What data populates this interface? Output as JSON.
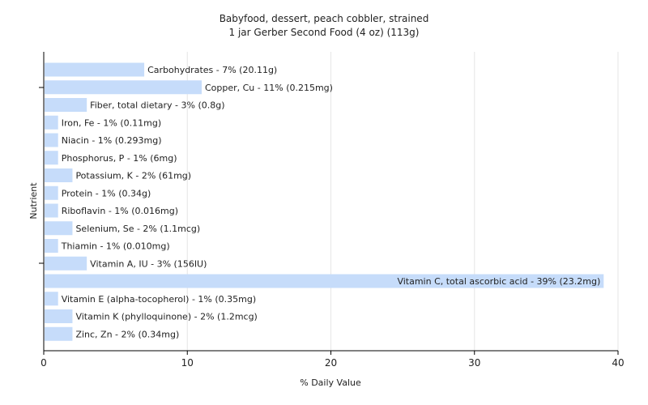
{
  "chart_data": {
    "type": "bar",
    "orientation": "horizontal",
    "title": "Babyfood, dessert, peach cobbler, strained",
    "subtitle": "1 jar Gerber Second Food (4 oz) (113g)",
    "xlabel": "% Daily Value",
    "ylabel": "Nutrient",
    "xlim": [
      0,
      40
    ],
    "xticks": [
      0,
      10,
      20,
      30,
      40
    ],
    "grid": true,
    "bar_color": "#c6dcfa",
    "bars": [
      {
        "label": "Carbohydrates - 7% (20.11g)",
        "value": 7
      },
      {
        "label": "Copper, Cu - 11% (0.215mg)",
        "value": 11
      },
      {
        "label": "Fiber, total dietary - 3% (0.8g)",
        "value": 3
      },
      {
        "label": "Iron, Fe - 1% (0.11mg)",
        "value": 1
      },
      {
        "label": "Niacin - 1% (0.293mg)",
        "value": 1
      },
      {
        "label": "Phosphorus, P - 1% (6mg)",
        "value": 1
      },
      {
        "label": "Potassium, K - 2% (61mg)",
        "value": 2
      },
      {
        "label": "Protein - 1% (0.34g)",
        "value": 1
      },
      {
        "label": "Riboflavin - 1% (0.016mg)",
        "value": 1
      },
      {
        "label": "Selenium, Se - 2% (1.1mcg)",
        "value": 2
      },
      {
        "label": "Thiamin - 1% (0.010mg)",
        "value": 1
      },
      {
        "label": "Vitamin A, IU - 3% (156IU)",
        "value": 3
      },
      {
        "label": "Vitamin C, total ascorbic acid - 39% (23.2mg)",
        "value": 39
      },
      {
        "label": "Vitamin E (alpha-tocopherol) - 1% (0.35mg)",
        "value": 1
      },
      {
        "label": "Vitamin K (phylloquinone) - 2% (1.2mcg)",
        "value": 2
      },
      {
        "label": "Zinc, Zn - 2% (0.34mg)",
        "value": 2
      }
    ]
  }
}
